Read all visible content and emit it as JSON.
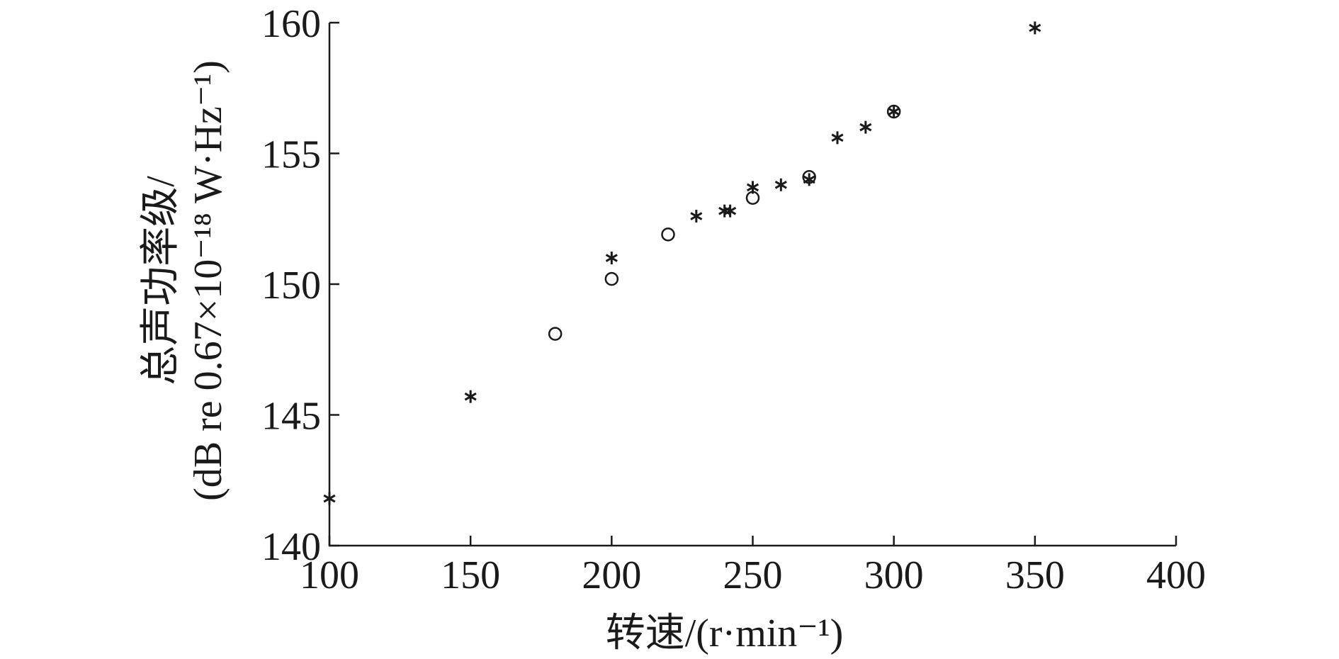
{
  "chart_data": {
    "type": "scatter",
    "title": "",
    "xlabel": "转速/(r·min⁻¹)",
    "ylabel_line1": "总声功率级/",
    "ylabel_line2": "(dB re 0.67×10⁻¹⁸ W·Hz⁻¹)",
    "xlim": [
      100,
      400
    ],
    "ylim": [
      140,
      160
    ],
    "xticks": [
      100,
      150,
      200,
      250,
      300,
      350,
      400
    ],
    "yticks": [
      140,
      145,
      150,
      155,
      160
    ],
    "grid": false,
    "series": [
      {
        "marker": "star",
        "color": "#1a1a1a",
        "points": [
          {
            "x": 100,
            "y": 141.8
          },
          {
            "x": 150,
            "y": 145.7
          },
          {
            "x": 200,
            "y": 151.0
          },
          {
            "x": 230,
            "y": 152.6
          },
          {
            "x": 240,
            "y": 152.8
          },
          {
            "x": 242,
            "y": 152.8
          },
          {
            "x": 250,
            "y": 153.7
          },
          {
            "x": 260,
            "y": 153.8
          },
          {
            "x": 270,
            "y": 154.0
          },
          {
            "x": 280,
            "y": 155.6
          },
          {
            "x": 290,
            "y": 156.0
          },
          {
            "x": 300,
            "y": 156.6
          },
          {
            "x": 350,
            "y": 159.8
          }
        ]
      },
      {
        "marker": "circle",
        "color": "#1a1a1a",
        "points": [
          {
            "x": 180,
            "y": 148.1
          },
          {
            "x": 200,
            "y": 150.2
          },
          {
            "x": 220,
            "y": 151.9
          },
          {
            "x": 250,
            "y": 153.3
          },
          {
            "x": 270,
            "y": 154.1
          },
          {
            "x": 300,
            "y": 156.6
          }
        ]
      }
    ]
  }
}
